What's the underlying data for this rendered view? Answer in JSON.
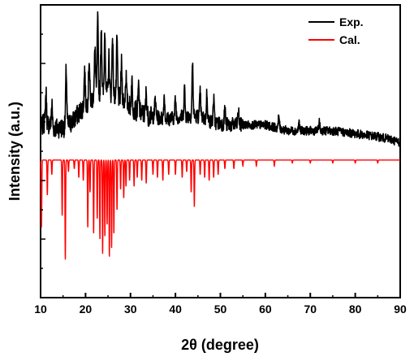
{
  "chart_data": {
    "type": "line",
    "title": "",
    "xlabel": "2θ (degree)",
    "ylabel": "Intensity (a.u.)",
    "xlim": [
      10,
      90
    ],
    "xticks": [
      10,
      20,
      30,
      40,
      50,
      60,
      70,
      80,
      90
    ],
    "yticks_shown": false,
    "grid": false,
    "legend_position": "top-right",
    "series": [
      {
        "name": "Exp.",
        "color": "#000000",
        "baseline_points": [
          [
            10,
            0.58
          ],
          [
            11,
            0.6
          ],
          [
            13,
            0.58
          ],
          [
            15,
            0.58
          ],
          [
            17,
            0.6
          ],
          [
            20,
            0.66
          ],
          [
            23,
            0.7
          ],
          [
            25,
            0.7
          ],
          [
            28,
            0.68
          ],
          [
            31,
            0.64
          ],
          [
            34,
            0.62
          ],
          [
            38,
            0.61
          ],
          [
            42,
            0.62
          ],
          [
            45,
            0.62
          ],
          [
            48,
            0.6
          ],
          [
            52,
            0.59
          ],
          [
            56,
            0.59
          ],
          [
            60,
            0.59
          ],
          [
            65,
            0.57
          ],
          [
            70,
            0.57
          ],
          [
            75,
            0.57
          ],
          [
            80,
            0.56
          ],
          [
            85,
            0.55
          ],
          [
            88,
            0.54
          ],
          [
            90,
            0.53
          ]
        ],
        "peaks": [
          [
            11.2,
            0.7
          ],
          [
            12.5,
            0.66
          ],
          [
            15.7,
            0.78
          ],
          [
            19.8,
            0.78
          ],
          [
            20.8,
            0.82
          ],
          [
            22.1,
            0.86
          ],
          [
            22.7,
            0.95
          ],
          [
            23.5,
            0.93
          ],
          [
            24.3,
            0.92
          ],
          [
            25.2,
            0.82
          ],
          [
            26.0,
            0.9
          ],
          [
            27.0,
            0.88
          ],
          [
            28.0,
            0.8
          ],
          [
            29.0,
            0.76
          ],
          [
            30.3,
            0.74
          ],
          [
            31.8,
            0.72
          ],
          [
            33.5,
            0.7
          ],
          [
            35.5,
            0.68
          ],
          [
            37.5,
            0.69
          ],
          [
            40.0,
            0.68
          ],
          [
            42.0,
            0.72
          ],
          [
            43.8,
            0.8
          ],
          [
            45.5,
            0.7
          ],
          [
            47.0,
            0.7
          ],
          [
            48.5,
            0.68
          ],
          [
            51.0,
            0.65
          ],
          [
            54.0,
            0.64
          ],
          [
            63.0,
            0.62
          ],
          [
            67.5,
            0.6
          ],
          [
            72.0,
            0.6
          ]
        ]
      },
      {
        "name": "Cal.",
        "color": "#ff0000",
        "baseline": 0.47,
        "peaks": [
          [
            10.2,
            0.24
          ],
          [
            11.5,
            0.35
          ],
          [
            12.5,
            0.42
          ],
          [
            14.8,
            0.28
          ],
          [
            15.5,
            0.13
          ],
          [
            16.2,
            0.43
          ],
          [
            17.5,
            0.44
          ],
          [
            18.5,
            0.41
          ],
          [
            19.5,
            0.4
          ],
          [
            20.5,
            0.24
          ],
          [
            21.0,
            0.36
          ],
          [
            21.8,
            0.22
          ],
          [
            22.6,
            0.27
          ],
          [
            23.2,
            0.2
          ],
          [
            23.8,
            0.15
          ],
          [
            24.3,
            0.21
          ],
          [
            24.8,
            0.25
          ],
          [
            25.3,
            0.14
          ],
          [
            25.8,
            0.17
          ],
          [
            26.3,
            0.22
          ],
          [
            27.0,
            0.3
          ],
          [
            27.8,
            0.37
          ],
          [
            28.5,
            0.34
          ],
          [
            29.0,
            0.38
          ],
          [
            29.8,
            0.4
          ],
          [
            30.8,
            0.38
          ],
          [
            31.5,
            0.41
          ],
          [
            32.5,
            0.4
          ],
          [
            33.5,
            0.39
          ],
          [
            35.0,
            0.42
          ],
          [
            36.0,
            0.41
          ],
          [
            37.2,
            0.4
          ],
          [
            38.5,
            0.42
          ],
          [
            40.0,
            0.42
          ],
          [
            41.5,
            0.41
          ],
          [
            42.5,
            0.43
          ],
          [
            43.5,
            0.36
          ],
          [
            44.2,
            0.31
          ],
          [
            45.5,
            0.42
          ],
          [
            46.5,
            0.41
          ],
          [
            47.5,
            0.4
          ],
          [
            48.5,
            0.41
          ],
          [
            49.5,
            0.42
          ],
          [
            51.0,
            0.44
          ],
          [
            53.0,
            0.44
          ],
          [
            55.0,
            0.45
          ],
          [
            58.0,
            0.45
          ],
          [
            62.0,
            0.45
          ],
          [
            66.0,
            0.46
          ],
          [
            70.0,
            0.46
          ],
          [
            75.0,
            0.46
          ],
          [
            80.0,
            0.46
          ],
          [
            85.0,
            0.46
          ]
        ]
      }
    ]
  }
}
